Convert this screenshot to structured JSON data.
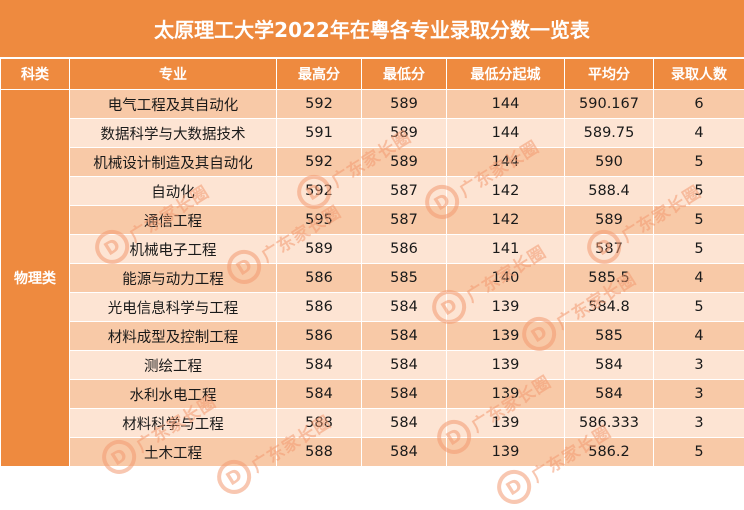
{
  "title": "太原理工大学2022年在粤各专业录取分数一览表",
  "headers": [
    "科类",
    "专业",
    "最高分",
    "最低分",
    "最低分起城",
    "平均分",
    "录取人数"
  ],
  "category": "物理类",
  "rows": [
    {
      "major": "电气工程及其自动化",
      "max": "592",
      "min": "589",
      "rank": "144",
      "avg": "590.167",
      "count": "6"
    },
    {
      "major": "数据科学与大数据技术",
      "max": "591",
      "min": "589",
      "rank": "144",
      "avg": "589.75",
      "count": "4"
    },
    {
      "major": "机械设计制造及其自动化",
      "max": "592",
      "min": "589",
      "rank": "144",
      "avg": "590",
      "count": "5"
    },
    {
      "major": "自动化",
      "max": "592",
      "min": "587",
      "rank": "142",
      "avg": "588.4",
      "count": "5"
    },
    {
      "major": "通信工程",
      "max": "595",
      "min": "587",
      "rank": "142",
      "avg": "589",
      "count": "5"
    },
    {
      "major": "机械电子工程",
      "max": "589",
      "min": "586",
      "rank": "141",
      "avg": "587",
      "count": "5"
    },
    {
      "major": "能源与动力工程",
      "max": "586",
      "min": "585",
      "rank": "140",
      "avg": "585.5",
      "count": "4"
    },
    {
      "major": "光电信息科学与工程",
      "max": "586",
      "min": "584",
      "rank": "139",
      "avg": "584.8",
      "count": "5"
    },
    {
      "major": "材料成型及控制工程",
      "max": "586",
      "min": "584",
      "rank": "139",
      "avg": "585",
      "count": "4"
    },
    {
      "major": "测绘工程",
      "max": "584",
      "min": "584",
      "rank": "139",
      "avg": "584",
      "count": "3"
    },
    {
      "major": "水利水电工程",
      "max": "584",
      "min": "584",
      "rank": "139",
      "avg": "584",
      "count": "3"
    },
    {
      "major": "材料科学与工程",
      "max": "588",
      "min": "584",
      "rank": "139",
      "avg": "586.333",
      "count": "3"
    },
    {
      "major": "土木工程",
      "max": "588",
      "min": "584",
      "rank": "139",
      "avg": "586.2",
      "count": "5"
    }
  ],
  "watermark": {
    "logo": "D",
    "text": "广东家长圈"
  },
  "colors": {
    "header": "#ee8a3f",
    "row_dark": "#f8c9a7",
    "row_light": "#fde4d3",
    "watermark": "#f39b72"
  }
}
